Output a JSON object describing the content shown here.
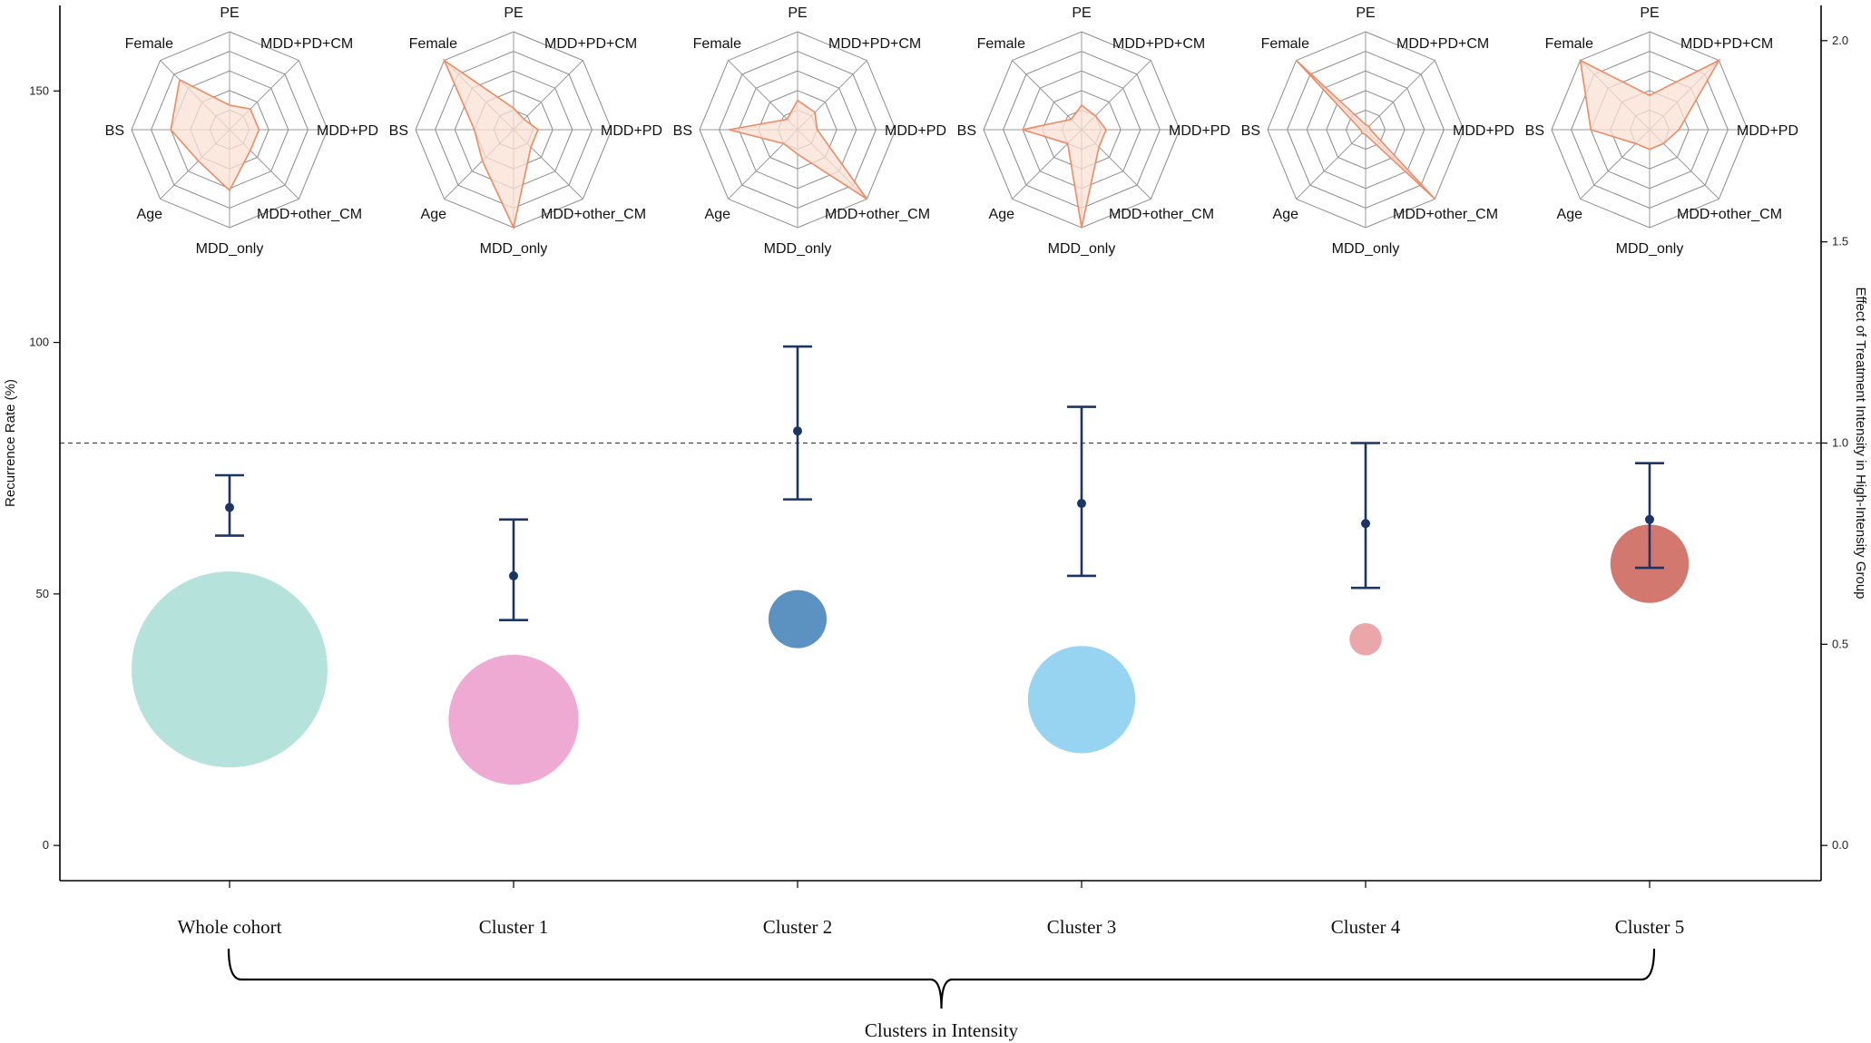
{
  "chart_data": {
    "type": "scatter",
    "title": "",
    "xlabel": "Clusters in Intensity",
    "ylabel_left": "Recurrence Rate (%)",
    "ylabel_right": "Effect of Treatment Intensity in High-Intensity Group",
    "ylim_left": [
      -7,
      167
    ],
    "ylim_right": [
      -0.0875,
      2.0875
    ],
    "yticks_left": [
      0,
      50,
      100,
      150
    ],
    "yticks_right": [
      0.0,
      0.5,
      1.0,
      1.5,
      2.0
    ],
    "ytick_labels_right": [
      "0.0",
      "0.5",
      "1.0",
      "1.5",
      "2.0"
    ],
    "reference_line_right": 1.0,
    "categories": [
      "Whole cohort",
      "Cluster 1",
      "Cluster 2",
      "Cluster 3",
      "Cluster 4",
      "Cluster 5"
    ],
    "bubbles": [
      {
        "category": "Whole cohort",
        "recurrence_rate": 35,
        "relative_size": 1.0,
        "color": "#b5e3dc"
      },
      {
        "category": "Cluster 1",
        "recurrence_rate": 25,
        "relative_size": 0.44,
        "color": "#eeaad2"
      },
      {
        "category": "Cluster 2",
        "recurrence_rate": 45,
        "relative_size": 0.088,
        "color": "#5b92c2"
      },
      {
        "category": "Cluster 3",
        "recurrence_rate": 29,
        "relative_size": 0.3,
        "color": "#96d4f2"
      },
      {
        "category": "Cluster 4",
        "recurrence_rate": 41,
        "relative_size": 0.027,
        "color": "#eaa6a8"
      },
      {
        "category": "Cluster 5",
        "recurrence_rate": 56,
        "relative_size": 0.16,
        "color": "#d3786f"
      }
    ],
    "effect_estimates": [
      {
        "category": "Whole cohort",
        "estimate": 0.84,
        "lower": 0.77,
        "upper": 0.92
      },
      {
        "category": "Cluster 1",
        "estimate": 0.67,
        "lower": 0.56,
        "upper": 0.81
      },
      {
        "category": "Cluster 2",
        "estimate": 1.03,
        "lower": 0.86,
        "upper": 1.24
      },
      {
        "category": "Cluster 3",
        "estimate": 0.85,
        "lower": 0.67,
        "upper": 1.09
      },
      {
        "category": "Cluster 4",
        "estimate": 0.8,
        "lower": 0.64,
        "upper": 1.0
      },
      {
        "category": "Cluster 5",
        "estimate": 0.81,
        "lower": 0.69,
        "upper": 0.95
      }
    ],
    "radar_axes": [
      "PE",
      "MDD+PD+CM",
      "MDD+PD",
      "MDD+other_CM",
      "MDD_only",
      "Age",
      "BS",
      "Female"
    ],
    "radar_profiles": [
      {
        "category": "Whole cohort",
        "values": [
          0.25,
          0.3,
          0.3,
          0.3,
          0.62,
          0.45,
          0.6,
          0.72
        ]
      },
      {
        "category": "Cluster 1",
        "values": [
          0.22,
          0.15,
          0.25,
          0.25,
          1.0,
          0.45,
          0.4,
          1.0
        ]
      },
      {
        "category": "Cluster 2",
        "values": [
          0.3,
          0.25,
          0.2,
          1.0,
          0.25,
          0.2,
          0.7,
          0.15
        ]
      },
      {
        "category": "Cluster 3",
        "values": [
          0.25,
          0.2,
          0.25,
          0.25,
          1.0,
          0.2,
          0.6,
          0.15
        ]
      },
      {
        "category": "Cluster 4",
        "values": [
          0.05,
          0.05,
          0.05,
          1.0,
          0.05,
          0.05,
          0.05,
          1.0
        ]
      },
      {
        "category": "Cluster 5",
        "values": [
          0.35,
          1.0,
          0.3,
          0.2,
          0.2,
          0.2,
          0.6,
          1.0
        ]
      }
    ]
  }
}
